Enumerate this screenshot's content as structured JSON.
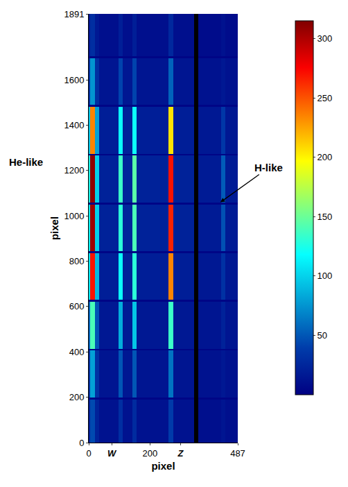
{
  "chart_data": {
    "type": "heatmap",
    "x_label": "pixel",
    "y_label": "pixel",
    "xlim": [
      0,
      487
    ],
    "ylim": [
      0,
      1891
    ],
    "xticks": [
      0,
      {
        "value": 75,
        "label": "W"
      },
      200,
      {
        "value": 300,
        "label": "Z"
      },
      487
    ],
    "yticks": [
      0,
      200,
      400,
      600,
      800,
      1000,
      1200,
      1400,
      1600,
      1891
    ],
    "grid": false,
    "x_edges": [
      0,
      4,
      20,
      34,
      98,
      112,
      143,
      157,
      260,
      276,
      345,
      357,
      432,
      446,
      487
    ],
    "y_edges": [
      0,
      191,
      199,
      406,
      414,
      621,
      629,
      836,
      844,
      1051,
      1059,
      1266,
      1274,
      1481,
      1489,
      1696,
      1704,
      1891
    ],
    "z": [
      [
        20,
        45,
        22,
        12,
        30,
        12,
        28,
        12,
        38,
        12,
        null,
        10,
        14,
        10
      ],
      [
        3,
        3,
        3,
        3,
        3,
        3,
        3,
        3,
        3,
        3,
        null,
        3,
        3,
        3
      ],
      [
        30,
        80,
        32,
        14,
        50,
        15,
        50,
        14,
        62,
        14,
        null,
        12,
        16,
        12
      ],
      [
        3,
        3,
        3,
        3,
        3,
        3,
        3,
        3,
        3,
        3,
        null,
        3,
        3,
        3
      ],
      [
        55,
        140,
        50,
        16,
        85,
        18,
        95,
        16,
        135,
        16,
        null,
        14,
        22,
        14
      ],
      [
        3,
        3,
        3,
        3,
        3,
        3,
        3,
        3,
        3,
        3,
        null,
        3,
        3,
        3
      ],
      [
        110,
        270,
        90,
        20,
        120,
        22,
        130,
        20,
        235,
        20,
        null,
        16,
        32,
        16
      ],
      [
        3,
        3,
        3,
        3,
        3,
        3,
        3,
        3,
        3,
        3,
        null,
        3,
        3,
        3
      ],
      [
        120,
        305,
        100,
        22,
        130,
        24,
        140,
        22,
        265,
        22,
        null,
        18,
        48,
        18
      ],
      [
        3,
        3,
        3,
        3,
        3,
        3,
        3,
        3,
        3,
        3,
        null,
        3,
        3,
        3
      ],
      [
        125,
        310,
        100,
        22,
        135,
        24,
        145,
        22,
        270,
        22,
        null,
        18,
        52,
        18
      ],
      [
        3,
        3,
        3,
        3,
        3,
        3,
        3,
        3,
        3,
        3,
        null,
        3,
        3,
        3
      ],
      [
        95,
        235,
        80,
        20,
        120,
        22,
        120,
        20,
        205,
        20,
        null,
        16,
        36,
        16
      ],
      [
        3,
        3,
        3,
        3,
        3,
        3,
        3,
        3,
        3,
        3,
        null,
        3,
        3,
        3
      ],
      [
        30,
        75,
        30,
        14,
        42,
        15,
        42,
        14,
        55,
        14,
        null,
        12,
        16,
        12
      ],
      [
        3,
        3,
        3,
        3,
        3,
        3,
        3,
        3,
        3,
        3,
        null,
        3,
        3,
        3
      ],
      [
        14,
        30,
        16,
        10,
        20,
        10,
        20,
        10,
        26,
        10,
        null,
        8,
        12,
        8
      ]
    ],
    "zlim": [
      0,
      315
    ],
    "zticks": [
      50,
      100,
      150,
      200,
      250,
      300
    ],
    "annotations": [
      {
        "text": "He-like"
      },
      {
        "text": "H-like",
        "x": 430,
        "y": 1060
      }
    ]
  }
}
